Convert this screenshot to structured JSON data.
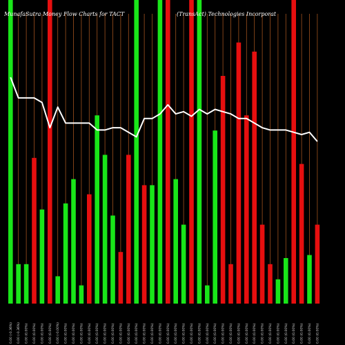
{
  "chart_data": {
    "type": "bar",
    "title": "MunafaSutra Money Flow Charts for TACT",
    "subtitle": "(TransAct) Technologies Incorporat",
    "ylim": [
      0,
      100
    ],
    "colors": {
      "up": "#19e619",
      "down": "#e60f0f",
      "line": "#ffffff",
      "grid": "#a0521e",
      "background": "#000000"
    },
    "categories": [
      "0.00 (-0.36%)",
      "0.00 (-0.36%)",
      "0.00 (0.00%)",
      "0.00 (0.00%)",
      "0.00 (0.00%)",
      "0.00 (0.00%)",
      "0.00 (-0.00%)",
      "0.00 (0.00%)",
      "0.00 (0.00%)",
      "0.00 (0.00%)",
      "0.00 (0.00%)",
      "0.00 (0.00%)",
      "0.00 (0.00%)",
      "0.00 (0.00%)",
      "0.00 (0.00%)",
      "0.00 (0.00%)",
      "0.00 (0.00%)",
      "0.00 (0.00%)",
      "0.00 (0.00%)",
      "0.00 (0.00%)",
      "0.00 (0.00%)",
      "0.00 (0.00%)",
      "0.00 (0.00%)",
      "0.00 (0.00%)",
      "0.00 (0.00%)",
      "0.00 (0.00%)",
      "0.00 (0.00%)",
      "0.00 (0.00%)",
      "0.00 (0.00%)",
      "0.00 (0.00%)",
      "0.00 (0.00%)",
      "0.00 (0.00%)",
      "0.00 (0.00%)",
      "0.00 (0.00%)",
      "0.00 (0.00%)",
      "0.00 (0.00%)",
      "0.00 (0.00%)",
      "0.00 (0.00%)",
      "0.00 (0.00%)",
      "0.00 (0.00%)"
    ],
    "bars": [
      {
        "value": 100,
        "dir": "up"
      },
      {
        "value": 13,
        "dir": "up"
      },
      {
        "value": 13,
        "dir": "up"
      },
      {
        "value": 48,
        "dir": "down"
      },
      {
        "value": 31,
        "dir": "up"
      },
      {
        "value": 100,
        "dir": "down"
      },
      {
        "value": 9,
        "dir": "up"
      },
      {
        "value": 33,
        "dir": "up"
      },
      {
        "value": 41,
        "dir": "up"
      },
      {
        "value": 6,
        "dir": "up"
      },
      {
        "value": 36,
        "dir": "down"
      },
      {
        "value": 62,
        "dir": "up"
      },
      {
        "value": 49,
        "dir": "up"
      },
      {
        "value": 29,
        "dir": "up"
      },
      {
        "value": 17,
        "dir": "down"
      },
      {
        "value": 49,
        "dir": "down"
      },
      {
        "value": 100,
        "dir": "up"
      },
      {
        "value": 39,
        "dir": "down"
      },
      {
        "value": 39,
        "dir": "up"
      },
      {
        "value": 100,
        "dir": "up"
      },
      {
        "value": 100,
        "dir": "down"
      },
      {
        "value": 41,
        "dir": "up"
      },
      {
        "value": 26,
        "dir": "up"
      },
      {
        "value": 100,
        "dir": "down"
      },
      {
        "value": 100,
        "dir": "up"
      },
      {
        "value": 6,
        "dir": "up"
      },
      {
        "value": 57,
        "dir": "up"
      },
      {
        "value": 75,
        "dir": "down"
      },
      {
        "value": 13,
        "dir": "down"
      },
      {
        "value": 86,
        "dir": "down"
      },
      {
        "value": 62,
        "dir": "down"
      },
      {
        "value": 83,
        "dir": "down"
      },
      {
        "value": 26,
        "dir": "down"
      },
      {
        "value": 13,
        "dir": "down"
      },
      {
        "value": 8,
        "dir": "up"
      },
      {
        "value": 15,
        "dir": "up"
      },
      {
        "value": 100,
        "dir": "down"
      },
      {
        "value": 46,
        "dir": "down"
      },
      {
        "value": 16,
        "dir": "up"
      },
      {
        "value": 26,
        "dir": "down"
      }
    ],
    "line": [
      100,
      91,
      91,
      91,
      89,
      78,
      87,
      80,
      80,
      80,
      80,
      77,
      77,
      78,
      78,
      76,
      74,
      82,
      82,
      84,
      88,
      84,
      85,
      83,
      86,
      84,
      86,
      85,
      84,
      82,
      82,
      80,
      78,
      77,
      77,
      77,
      76,
      75,
      76,
      72
    ]
  }
}
